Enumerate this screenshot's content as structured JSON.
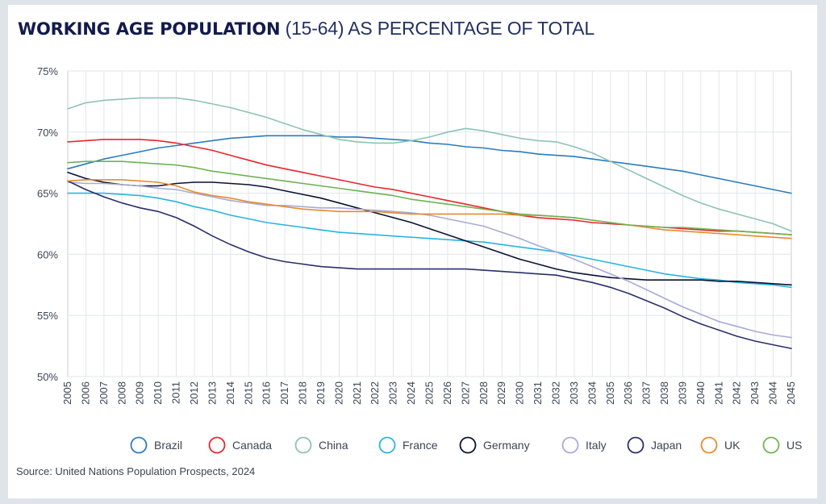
{
  "title": {
    "bold": "WORKING AGE POPULATION",
    "light": "(15-64) AS PERCENTAGE OF TOTAL"
  },
  "source": "Source: United Nations Population Prospects, 2024",
  "chart_data": {
    "type": "line",
    "title": "WORKING AGE POPULATION (15-64) AS PERCENTAGE OF TOTAL",
    "xlabel": "",
    "ylabel": "",
    "ylim": [
      50,
      75
    ],
    "yticks": [
      50,
      55,
      60,
      65,
      70,
      75
    ],
    "ytick_labels": [
      "50%",
      "55%",
      "60%",
      "65%",
      "70%",
      "75%"
    ],
    "grid": true,
    "legend_position": "bottom",
    "x": [
      "2005",
      "2006",
      "2007",
      "2008",
      "2009",
      "2010",
      "2011",
      "2012",
      "2013",
      "2014",
      "2015",
      "2016",
      "2017",
      "2018",
      "2019",
      "2020",
      "2021",
      "2022",
      "2023",
      "2024",
      "2025",
      "2026",
      "2027",
      "2028",
      "2029",
      "2030",
      "2031",
      "2032",
      "2033",
      "2034",
      "2035",
      "2036",
      "2037",
      "2038",
      "2039",
      "2040",
      "2041",
      "2042",
      "2043",
      "2044",
      "2045"
    ],
    "series": [
      {
        "name": "Brazil",
        "color": "#2b7bc0",
        "values": [
          67.0,
          67.4,
          67.8,
          68.1,
          68.4,
          68.7,
          68.9,
          69.1,
          69.3,
          69.5,
          69.6,
          69.7,
          69.7,
          69.7,
          69.7,
          69.6,
          69.6,
          69.5,
          69.4,
          69.3,
          69.1,
          69.0,
          68.8,
          68.7,
          68.5,
          68.4,
          68.2,
          68.1,
          68.0,
          67.8,
          67.6,
          67.4,
          67.2,
          67.0,
          66.8,
          66.5,
          66.2,
          65.9,
          65.6,
          65.3,
          65.0
        ]
      },
      {
        "name": "Canada",
        "color": "#e8262a",
        "values": [
          69.2,
          69.3,
          69.4,
          69.4,
          69.4,
          69.3,
          69.1,
          68.8,
          68.5,
          68.1,
          67.7,
          67.3,
          67.0,
          66.7,
          66.4,
          66.1,
          65.8,
          65.5,
          65.3,
          65.0,
          64.7,
          64.4,
          64.1,
          63.8,
          63.5,
          63.2,
          63.0,
          62.9,
          62.8,
          62.6,
          62.5,
          62.4,
          62.3,
          62.2,
          62.1,
          62.0,
          61.9,
          61.9,
          61.8,
          61.7,
          61.6
        ]
      },
      {
        "name": "China",
        "color": "#8cc4b4",
        "values": [
          71.9,
          72.4,
          72.6,
          72.7,
          72.8,
          72.8,
          72.8,
          72.6,
          72.3,
          72.0,
          71.6,
          71.2,
          70.7,
          70.2,
          69.8,
          69.4,
          69.2,
          69.1,
          69.1,
          69.3,
          69.6,
          70.0,
          70.3,
          70.1,
          69.8,
          69.5,
          69.3,
          69.2,
          68.8,
          68.3,
          67.6,
          66.9,
          66.2,
          65.5,
          64.8,
          64.2,
          63.7,
          63.3,
          62.9,
          62.5,
          61.9
        ]
      },
      {
        "name": "France",
        "color": "#27b5e2",
        "values": [
          65.0,
          65.0,
          65.0,
          64.9,
          64.8,
          64.6,
          64.3,
          63.9,
          63.6,
          63.2,
          62.9,
          62.6,
          62.4,
          62.2,
          62.0,
          61.8,
          61.7,
          61.6,
          61.5,
          61.4,
          61.3,
          61.2,
          61.1,
          61.0,
          60.8,
          60.6,
          60.4,
          60.2,
          59.9,
          59.6,
          59.3,
          59.0,
          58.7,
          58.4,
          58.2,
          58.0,
          57.9,
          57.7,
          57.6,
          57.5,
          57.3
        ]
      },
      {
        "name": "Germany",
        "color": "#0b1133",
        "values": [
          66.7,
          66.2,
          65.9,
          65.7,
          65.6,
          65.6,
          65.8,
          65.9,
          65.9,
          65.8,
          65.7,
          65.5,
          65.2,
          64.9,
          64.6,
          64.2,
          63.8,
          63.4,
          63.0,
          62.6,
          62.1,
          61.6,
          61.1,
          60.6,
          60.1,
          59.6,
          59.2,
          58.8,
          58.5,
          58.3,
          58.1,
          58.0,
          57.9,
          57.9,
          57.9,
          57.9,
          57.8,
          57.8,
          57.7,
          57.6,
          57.5
        ]
      },
      {
        "name": "Italy",
        "color": "#a9aad8",
        "values": [
          65.9,
          65.8,
          65.8,
          65.7,
          65.6,
          65.4,
          65.3,
          65.0,
          64.7,
          64.4,
          64.2,
          64.0,
          64.0,
          63.9,
          63.8,
          63.8,
          63.7,
          63.6,
          63.5,
          63.4,
          63.2,
          62.9,
          62.6,
          62.3,
          61.8,
          61.3,
          60.7,
          60.2,
          59.6,
          59.0,
          58.4,
          57.8,
          57.1,
          56.4,
          55.7,
          55.1,
          54.5,
          54.1,
          53.7,
          53.4,
          53.2
        ]
      },
      {
        "name": "Japan",
        "color": "#2a2f6a",
        "values": [
          66.0,
          65.3,
          64.7,
          64.2,
          63.8,
          63.5,
          63.0,
          62.3,
          61.5,
          60.8,
          60.2,
          59.7,
          59.4,
          59.2,
          59.0,
          58.9,
          58.8,
          58.8,
          58.8,
          58.8,
          58.8,
          58.8,
          58.8,
          58.7,
          58.6,
          58.5,
          58.4,
          58.3,
          58.0,
          57.7,
          57.3,
          56.8,
          56.2,
          55.6,
          54.9,
          54.3,
          53.8,
          53.3,
          52.9,
          52.6,
          52.3
        ]
      },
      {
        "name": "UK",
        "color": "#e88b2e",
        "values": [
          66.0,
          66.1,
          66.1,
          66.1,
          66.0,
          65.9,
          65.6,
          65.1,
          64.8,
          64.6,
          64.3,
          64.1,
          63.9,
          63.7,
          63.6,
          63.5,
          63.5,
          63.5,
          63.4,
          63.3,
          63.3,
          63.3,
          63.3,
          63.3,
          63.3,
          63.2,
          63.2,
          63.1,
          63.0,
          62.8,
          62.6,
          62.4,
          62.2,
          62.0,
          61.9,
          61.8,
          61.7,
          61.6,
          61.5,
          61.4,
          61.3
        ]
      },
      {
        "name": "US",
        "color": "#6db453",
        "values": [
          67.5,
          67.6,
          67.6,
          67.6,
          67.5,
          67.4,
          67.3,
          67.1,
          66.8,
          66.6,
          66.4,
          66.2,
          66.0,
          65.8,
          65.6,
          65.4,
          65.2,
          65.0,
          64.8,
          64.5,
          64.3,
          64.1,
          63.9,
          63.7,
          63.5,
          63.3,
          63.2,
          63.1,
          63.0,
          62.8,
          62.6,
          62.4,
          62.3,
          62.2,
          62.2,
          62.1,
          62.0,
          61.9,
          61.8,
          61.7,
          61.6
        ]
      }
    ]
  }
}
